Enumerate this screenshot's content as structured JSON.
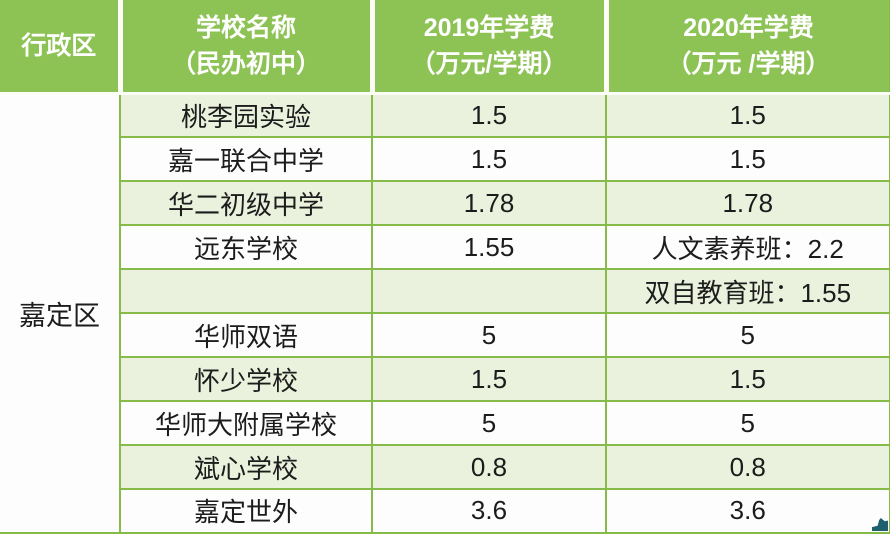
{
  "table": {
    "district_label": "嘉定区",
    "header": {
      "district": "行政区",
      "school_line1": "学校名称",
      "school_line2": "（民办初中）",
      "fee2019_line1": "2019年学费",
      "fee2019_line2": "（万元/学期）",
      "fee2020_line1": "2020年学费",
      "fee2020_line2": "（万元 /学期）"
    },
    "rows": [
      {
        "school": "桃李园实验",
        "fee2019": "1.5",
        "fee2020": "1.5"
      },
      {
        "school": "嘉一联合中学",
        "fee2019": "1.5",
        "fee2020": "1.5"
      },
      {
        "school": "华二初级中学",
        "fee2019": "1.78",
        "fee2020": "1.78"
      },
      {
        "school": "远东学校",
        "fee2019": "1.55",
        "fee2020": "人文素养班：2.2"
      },
      {
        "school": "",
        "fee2019": "",
        "fee2020": "双自教育班：1.55"
      },
      {
        "school": "华师双语",
        "fee2019": "5",
        "fee2020": "5"
      },
      {
        "school": "怀少学校",
        "fee2019": "1.5",
        "fee2020": "1.5"
      },
      {
        "school": "华师大附属学校",
        "fee2019": "5",
        "fee2020": "5"
      },
      {
        "school": "斌心学校",
        "fee2019": "0.8",
        "fee2020": "0.8"
      },
      {
        "school": "嘉定世外",
        "fee2019": "3.6",
        "fee2020": "3.6"
      }
    ],
    "colors": {
      "header_green": "#8dc355",
      "grid_green": "#86bb4a",
      "row_alt_green": "#eaf2dd",
      "row_white": "#fdfdfd",
      "header_text": "#ffffff",
      "body_text": "#1c1c1c",
      "header_separator": "#fbfdf6",
      "corner_artifact_teal": "#1f5f6e"
    }
  }
}
